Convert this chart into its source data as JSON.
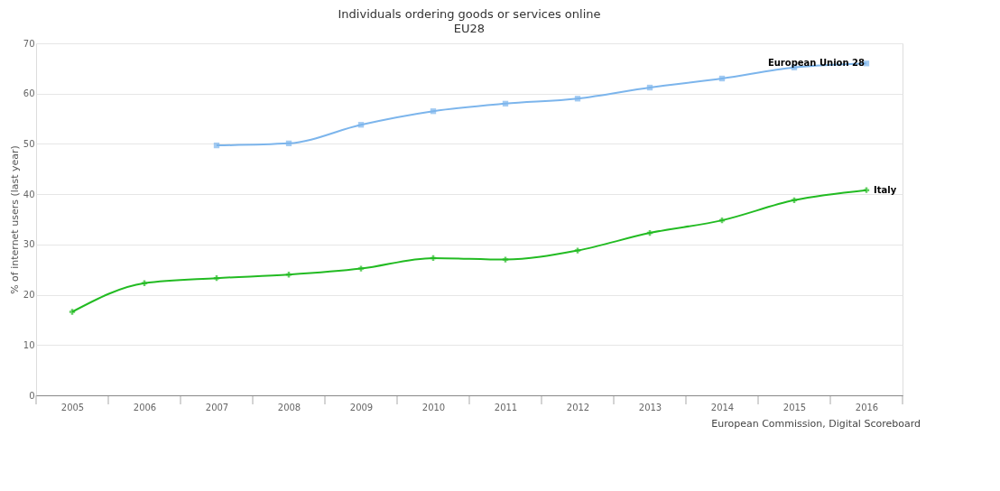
{
  "chart_data": {
    "type": "line",
    "title": "Individuals ordering goods or services online",
    "subtitle": "EU28",
    "ylabel": "% of internet users (last year)",
    "categories": [
      "2005",
      "2006",
      "2007",
      "2008",
      "2009",
      "2010",
      "2011",
      "2012",
      "2013",
      "2014",
      "2015",
      "2016"
    ],
    "series": [
      {
        "name": "European Union 28",
        "color": "#7cb5ec",
        "marker": "square",
        "values": [
          null,
          null,
          49.7,
          50.1,
          53.8,
          56.5,
          58,
          59,
          61.2,
          63,
          65.2,
          66
        ]
      },
      {
        "name": "Italy",
        "color": "#22bb22",
        "marker": "cross",
        "values": [
          16.6,
          22.3,
          23.3,
          24,
          25.2,
          27.3,
          27,
          28.8,
          32.3,
          34.8,
          38.8,
          40.8
        ]
      }
    ],
    "ylim": [
      0,
      70
    ],
    "yticks": [
      0,
      10,
      20,
      30,
      40,
      50,
      60,
      70
    ],
    "grid": "y",
    "legend": false,
    "annotations": [
      "European Commission, Digital Scoreboard"
    ]
  }
}
